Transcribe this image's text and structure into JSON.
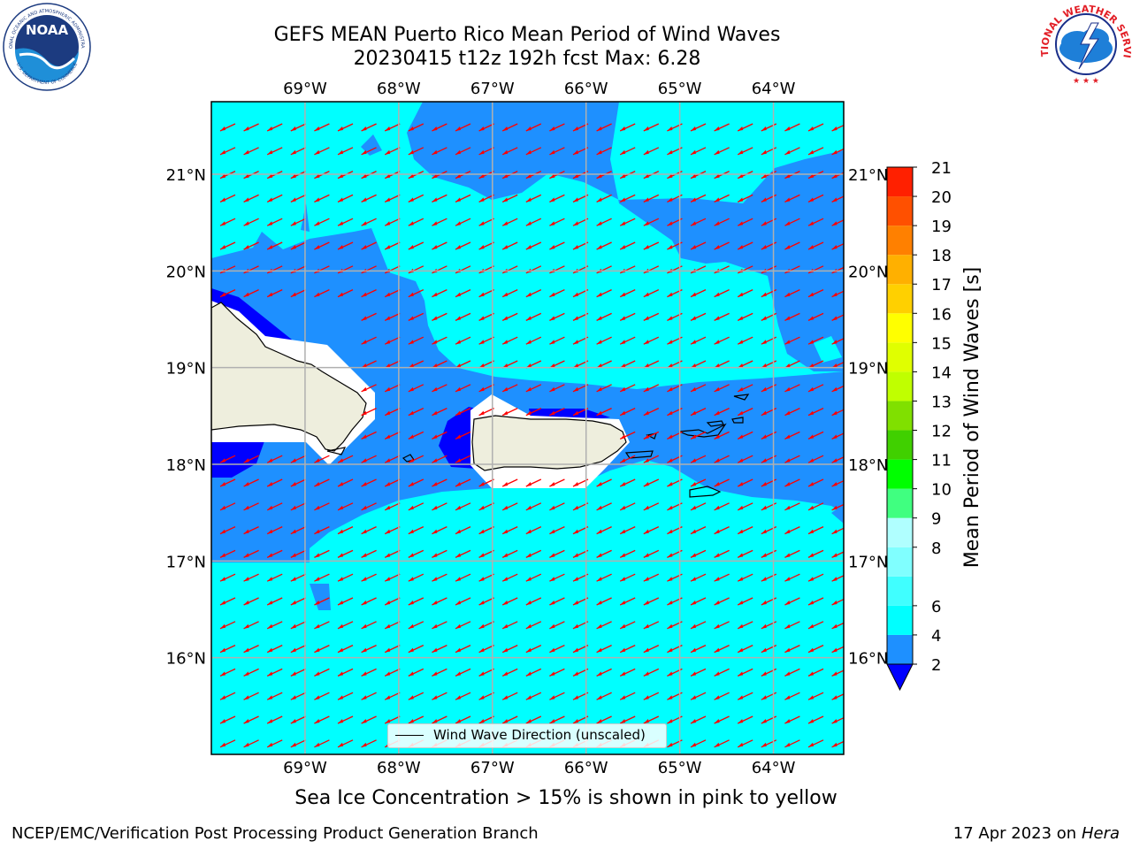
{
  "header": {
    "title_line1": "GEFS MEAN Puerto Rico Mean Period of Wind Waves",
    "title_line2": "20230415 t12z 192h fcst   Max: 6.28"
  },
  "logos": {
    "left": "noaa-logo",
    "left_text": "NOAA",
    "left_ring_text": "NATIONAL OCEANIC AND ATMOSPHERIC ADMINISTRATION",
    "left_ring_text_bottom": "U.S. DEPARTMENT OF COMMERCE",
    "right": "nws-logo",
    "right_ring_text": "NATIONAL WEATHER SERVICE"
  },
  "map": {
    "lon_labels": [
      "69°W",
      "68°W",
      "67°W",
      "66°W",
      "65°W",
      "64°W"
    ],
    "lat_labels": [
      "21°N",
      "20°N",
      "19°N",
      "18°N",
      "17°N",
      "16°N"
    ],
    "lon_values": [
      -69,
      -68,
      -67,
      -66,
      -65,
      -64
    ],
    "lat_values": [
      21,
      20,
      19,
      18,
      17,
      16
    ],
    "lon_range": [
      -70,
      -63.25
    ],
    "lat_range": [
      15.0,
      21.75
    ],
    "grid": true,
    "ocean_color": "#00ffff",
    "mid_color": "#1e90ff",
    "low_color": "#0000ff",
    "land_color": "#eeeedd",
    "arrow_color": "#ff0000",
    "wind_wave_direction": "northeasterly (arrows pointing toward southwest)"
  },
  "legend": {
    "label": "Wind Wave Direction (unscaled)"
  },
  "colorbar": {
    "title": "Mean Period of Wind Waves [s]",
    "levels": [
      2,
      4,
      6,
      7,
      8,
      9,
      10,
      11,
      12,
      13,
      14,
      15,
      16,
      17,
      18,
      19,
      20,
      21
    ],
    "tick_labels": [
      "2",
      "4",
      "6",
      "8",
      "9",
      "10",
      "11",
      "12",
      "13",
      "14",
      "15",
      "16",
      "17",
      "18",
      "19",
      "20",
      "21"
    ],
    "colors": [
      "#1e90ff",
      "#00ffff",
      "#40ffff",
      "#80ffff",
      "#b0ffff",
      "#40ff80",
      "#00ff00",
      "#40d000",
      "#80e000",
      "#c0ff00",
      "#e0ff00",
      "#ffff00",
      "#ffd000",
      "#ffb000",
      "#ff8000",
      "#ff5000",
      "#ff2000",
      "#ff0000"
    ],
    "under_color": "#0000ff"
  },
  "footer": {
    "sea_ice_note": "Sea Ice Concentration > 15% is shown in pink to yellow",
    "left": "NCEP/EMC/Verification Post Processing Product Generation Branch",
    "right_date": "17 Apr 2023 on ",
    "right_machine": "Hera"
  }
}
